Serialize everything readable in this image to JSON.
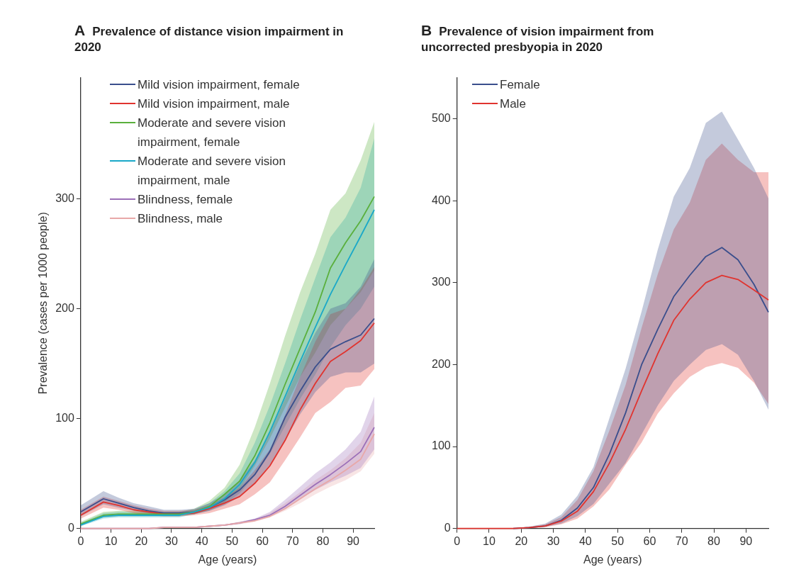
{
  "chart_data": [
    {
      "type": "line",
      "title": "A Prevalence of distance vision impairment in 2020",
      "xlabel": "Age (years)",
      "ylabel": "Prevalence (cases per 1000 people)",
      "x": [
        0,
        7.5,
        12.5,
        17.5,
        22.5,
        27.5,
        32.5,
        37.5,
        42.5,
        47.5,
        52.5,
        57.5,
        62.5,
        67.5,
        72.5,
        77.5,
        82.5,
        87.5,
        92.5,
        97
      ],
      "xlim": [
        0,
        97
      ],
      "xticks": [
        0,
        10,
        20,
        30,
        40,
        50,
        60,
        70,
        80,
        90
      ],
      "ylim": [
        0,
        410
      ],
      "yticks": [
        0,
        100,
        200,
        300
      ],
      "grid": false,
      "legend": "top left",
      "marker": "none",
      "line_style": "solid",
      "series": [
        {
          "name": "Mild vision impairment, female",
          "color": "#3a4e8c",
          "values": [
            15,
            27,
            23,
            19,
            16,
            14,
            14,
            15,
            19,
            26,
            35,
            49,
            70,
            101,
            125,
            147,
            163,
            170,
            176,
            191
          ],
          "lower": [
            11,
            22,
            19,
            16,
            14,
            12,
            12,
            13,
            16,
            21,
            29,
            41,
            58,
            80,
            104,
            124,
            138,
            142,
            142,
            150
          ],
          "upper": [
            21,
            34,
            28,
            23,
            20,
            17,
            17,
            18,
            23,
            31,
            44,
            62,
            87,
            118,
            150,
            178,
            200,
            205,
            220,
            245
          ]
        },
        {
          "name": "Mild vision impairment, male",
          "color": "#e0342f",
          "values": [
            12,
            24,
            21,
            17,
            15,
            13,
            13,
            14,
            18,
            23,
            29,
            41,
            57,
            80,
            108,
            132,
            152,
            161,
            171,
            187
          ],
          "lower": [
            9,
            19,
            17,
            14,
            12,
            11,
            11,
            12,
            14,
            18,
            22,
            31,
            42,
            62,
            83,
            105,
            115,
            128,
            130,
            145
          ],
          "upper": [
            17,
            29,
            25,
            21,
            18,
            16,
            16,
            17,
            21,
            28,
            37,
            53,
            72,
            103,
            138,
            170,
            195,
            200,
            218,
            238
          ]
        },
        {
          "name": "Moderate and severe vision impairment, female",
          "color": "#5aaf3c",
          "values": [
            4,
            12,
            13,
            13,
            13,
            13,
            13,
            15,
            20,
            31,
            43,
            66,
            96,
            131,
            164,
            197,
            237,
            260,
            280,
            302
          ],
          "lower": [
            3,
            10,
            11,
            11,
            11,
            11,
            11,
            13,
            17,
            24,
            36,
            57,
            82,
            110,
            138,
            160,
            185,
            200,
            215,
            235
          ],
          "upper": [
            6,
            15,
            16,
            16,
            15,
            15,
            15,
            18,
            25,
            37,
            58,
            92,
            132,
            175,
            215,
            250,
            290,
            305,
            335,
            370
          ]
        },
        {
          "name": "Moderate and severe vision impairment, male",
          "color": "#1aa8c8",
          "values": [
            3,
            11,
            12,
            12,
            12,
            12,
            12,
            15,
            19,
            27,
            40,
            60,
            88,
            120,
            152,
            183,
            213,
            240,
            266,
            290
          ],
          "lower": [
            2,
            9,
            10,
            10,
            10,
            10,
            10,
            13,
            16,
            22,
            32,
            48,
            68,
            93,
            118,
            140,
            165,
            185,
            200,
            220
          ],
          "upper": [
            5,
            14,
            15,
            15,
            15,
            15,
            15,
            17,
            23,
            34,
            50,
            78,
            112,
            150,
            190,
            228,
            265,
            283,
            310,
            355
          ]
        },
        {
          "name": "Blindness, female",
          "color": "#9b6fb8",
          "values": [
            0,
            0,
            0,
            0,
            0,
            1,
            1,
            1,
            2,
            3,
            5,
            8,
            12,
            20,
            30,
            40,
            49,
            59,
            70,
            92
          ],
          "lower": [
            0,
            0,
            0,
            0,
            0,
            0.5,
            0.5,
            0.5,
            1.5,
            2.5,
            4,
            7,
            11,
            18,
            27,
            35,
            42,
            48,
            55,
            72
          ],
          "upper": [
            0,
            0,
            0,
            0,
            0,
            1.5,
            1.5,
            1.5,
            2.5,
            3.5,
            6,
            9,
            15,
            26,
            38,
            50,
            60,
            72,
            88,
            120
          ]
        },
        {
          "name": "Blindness, male",
          "color": "#e8a8a8",
          "values": [
            0,
            0,
            0,
            0,
            0,
            1,
            1,
            1,
            2,
            3,
            5,
            7,
            11,
            18,
            27,
            36,
            44,
            53,
            63,
            86
          ],
          "lower": [
            0,
            0,
            0,
            0,
            0,
            0.5,
            0.5,
            0.5,
            1.5,
            2.5,
            4,
            6,
            10,
            16,
            23,
            31,
            38,
            44,
            52,
            68
          ],
          "upper": [
            0,
            0,
            0,
            0,
            0,
            1.5,
            1.5,
            1.5,
            2.5,
            3.5,
            6,
            8,
            14,
            23,
            33,
            44,
            53,
            64,
            78,
            105
          ]
        }
      ]
    },
    {
      "type": "line",
      "title": "B Prevalence of vision impairment from uncorrected presbyopia in 2020",
      "xlabel": "Age (years)",
      "x": [
        0,
        7.5,
        12.5,
        17.5,
        22.5,
        27.5,
        32.5,
        37.5,
        42.5,
        47.5,
        52.5,
        57.5,
        62.5,
        67.5,
        72.5,
        77.5,
        82.5,
        87.5,
        92.5,
        97
      ],
      "xlim": [
        0,
        97
      ],
      "xticks": [
        0,
        10,
        20,
        30,
        40,
        50,
        60,
        70,
        80,
        90
      ],
      "ylim": [
        0,
        550
      ],
      "yticks": [
        0,
        100,
        200,
        300,
        400,
        500
      ],
      "grid": false,
      "legend": "top left",
      "marker": "none",
      "line_style": "solid",
      "series": [
        {
          "name": "Female",
          "color": "#3a4e8c",
          "values": [
            null,
            null,
            null,
            0,
            1,
            3,
            10,
            25,
            50,
            91,
            141,
            200,
            243,
            283,
            309,
            332,
            343,
            328,
            298,
            264
          ],
          "lower": [
            0,
            0,
            0,
            0,
            0.5,
            2,
            6,
            15,
            30,
            55,
            80,
            115,
            150,
            180,
            200,
            218,
            225,
            212,
            180,
            145
          ],
          "upper": [
            0,
            0,
            0,
            0,
            2,
            6,
            17,
            40,
            75,
            135,
            195,
            265,
            340,
            405,
            440,
            495,
            509,
            475,
            440,
            403
          ]
        },
        {
          "name": "Male",
          "color": "#e0342f",
          "values": [
            0,
            0,
            0,
            0,
            1,
            3,
            9,
            21,
            45,
            80,
            121,
            168,
            213,
            254,
            280,
            300,
            309,
            304,
            291,
            279
          ],
          "lower": [
            0,
            0,
            0,
            0,
            0.5,
            1.5,
            5,
            12,
            27,
            48,
            78,
            105,
            140,
            165,
            185,
            197,
            202,
            196,
            178,
            152
          ],
          "upper": [
            0,
            0,
            0,
            0,
            2,
            5,
            14,
            35,
            70,
            120,
            175,
            245,
            310,
            365,
            398,
            450,
            470,
            450,
            435,
            435
          ]
        }
      ]
    }
  ]
}
